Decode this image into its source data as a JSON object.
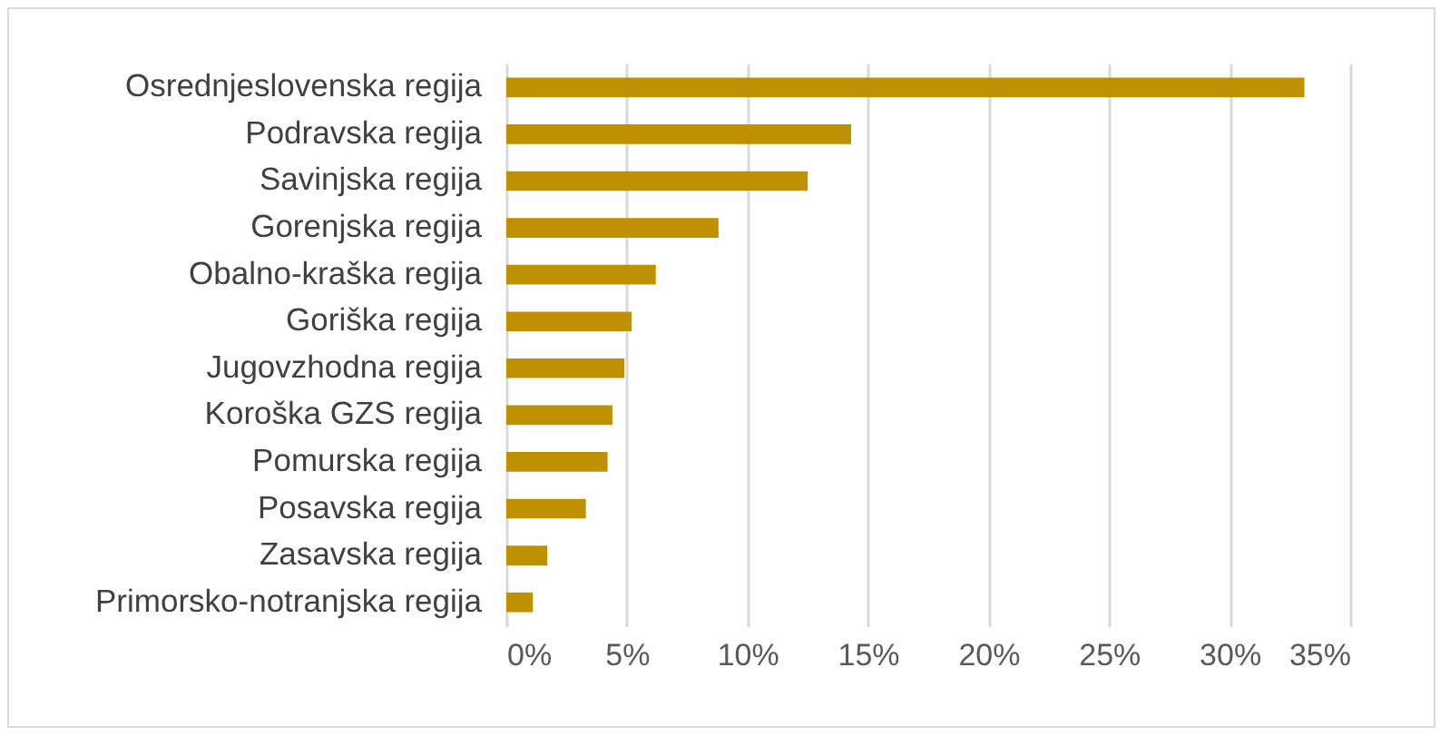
{
  "chart_data": {
    "type": "bar",
    "orientation": "horizontal",
    "categories": [
      "Osrednjeslovenska regija",
      "Podravska regija",
      "Savinjska regija",
      "Gorenjska regija",
      "Obalno-kraška regija",
      "Goriška regija",
      "Jugovzhodna regija",
      "Koroška GZS regija",
      "Pomurska regija",
      "Posavska regija",
      "Zasavska regija",
      "Primorsko-notranjska regija"
    ],
    "values": [
      33.1,
      14.3,
      12.5,
      8.8,
      6.2,
      5.2,
      4.9,
      4.4,
      4.2,
      3.3,
      1.7,
      1.1
    ],
    "color": "#bf9000",
    "xlim": [
      0,
      35
    ],
    "xticks": [
      {
        "value": 0,
        "label": "0%"
      },
      {
        "value": 5,
        "label": "5%"
      },
      {
        "value": 10,
        "label": "10%"
      },
      {
        "value": 15,
        "label": "15%"
      },
      {
        "value": 20,
        "label": "20%"
      },
      {
        "value": 25,
        "label": "25%"
      },
      {
        "value": 30,
        "label": "30%"
      },
      {
        "value": 35,
        "label": "35%"
      }
    ],
    "grid": "x"
  }
}
